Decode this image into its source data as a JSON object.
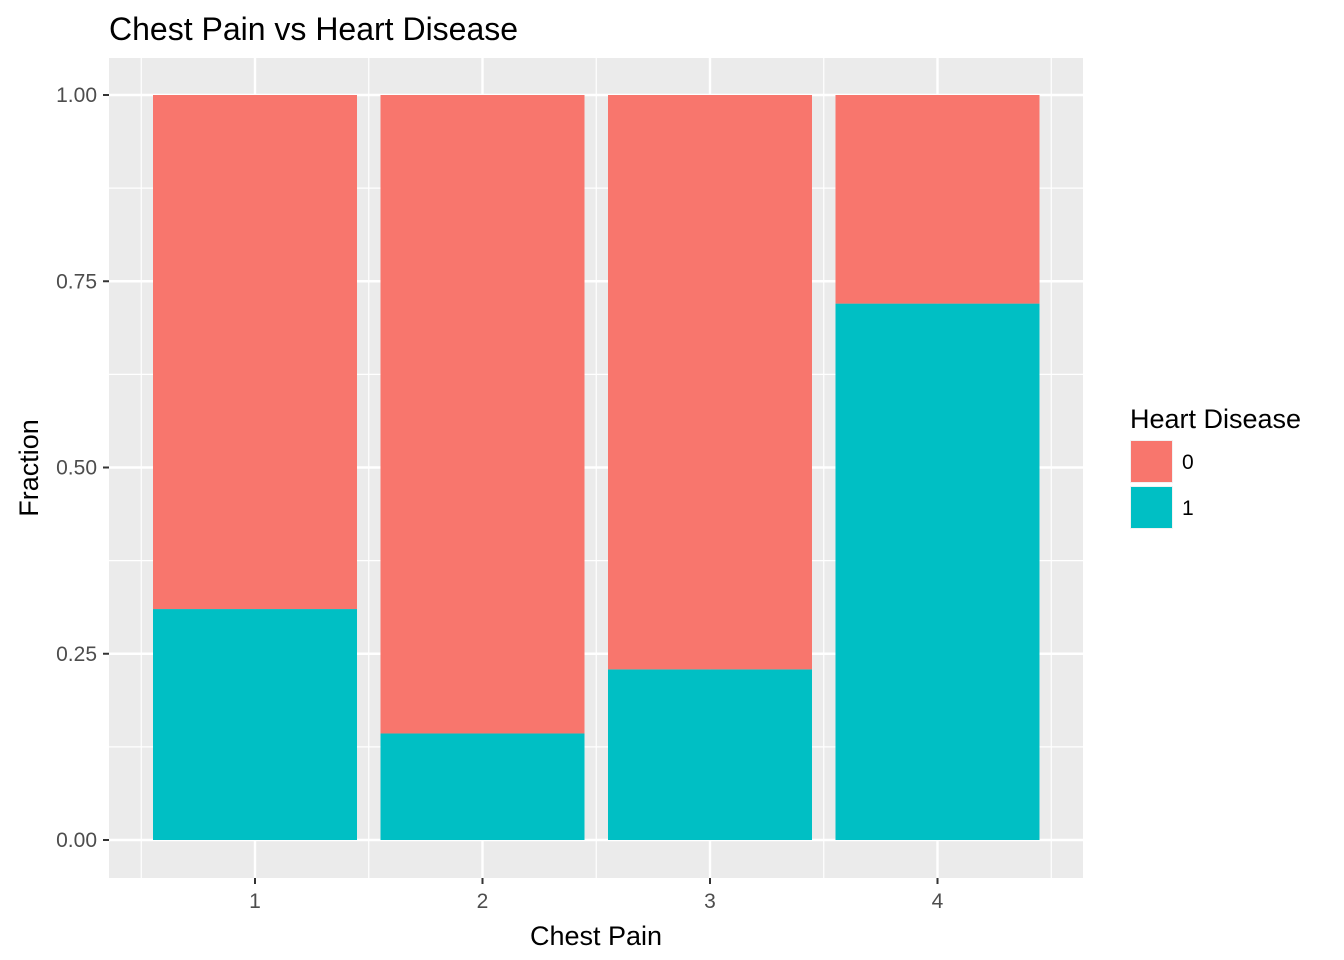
{
  "chart_data": {
    "type": "bar",
    "stacked": true,
    "title": "Chest Pain vs Heart Disease",
    "xlabel": "Chest Pain",
    "ylabel": "Fraction",
    "categories": [
      "1",
      "2",
      "3",
      "4"
    ],
    "series": [
      {
        "name": "0",
        "values": [
          0.69,
          0.857,
          0.771,
          0.28
        ],
        "color": "#F8766D"
      },
      {
        "name": "1",
        "values": [
          0.31,
          0.143,
          0.229,
          0.72
        ],
        "color": "#00BFC4"
      }
    ],
    "stack_order_bottom_to_top": [
      "1",
      "0"
    ],
    "ylim": [
      0,
      1
    ],
    "yticks": [
      "0.00",
      "0.25",
      "0.50",
      "0.75",
      "1.00"
    ],
    "ytick_values": [
      0,
      0.25,
      0.5,
      0.75,
      1.0
    ],
    "grid": true,
    "panel_background": "#EBEBEB",
    "legend": {
      "title": "Heart Disease",
      "position": "right",
      "entries": [
        "0",
        "1"
      ]
    }
  }
}
